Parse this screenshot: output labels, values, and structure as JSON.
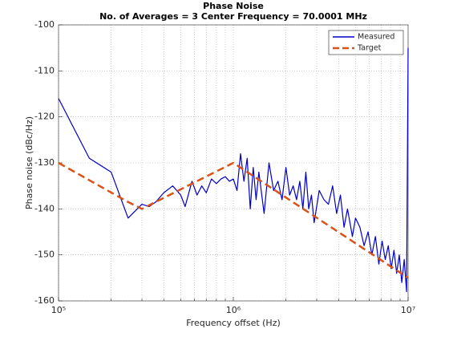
{
  "chart_data": {
    "type": "line",
    "title": "Phase Noise",
    "subtitle": "No. of Averages = 3 Center Frequency = 70.0001 MHz",
    "xlabel": "Frequency offset (Hz)",
    "ylabel": "Phase noise (dBc/Hz)",
    "xscale": "log",
    "xlim": [
      100000,
      10000000
    ],
    "ylim": [
      -160,
      -100
    ],
    "xticks": [
      {
        "value": 100000,
        "label": "10⁵"
      },
      {
        "value": 1000000,
        "label": "10⁶"
      },
      {
        "value": 10000000,
        "label": "10⁷"
      }
    ],
    "xminorticks": [
      200000,
      300000,
      400000,
      500000,
      600000,
      700000,
      800000,
      900000,
      2000000,
      3000000,
      4000000,
      5000000,
      6000000,
      7000000,
      8000000,
      9000000
    ],
    "yticks": [
      -160,
      -150,
      -140,
      -130,
      -120,
      -110,
      -100
    ],
    "grid": true,
    "legend": "top-right",
    "series": [
      {
        "name": "Measured",
        "color": "#0000cc",
        "style": "solid",
        "x": [
          100000,
          150000,
          200000,
          250000,
          300000,
          330000,
          360000,
          400000,
          450000,
          500000,
          530000,
          580000,
          620000,
          660000,
          700000,
          750000,
          800000,
          850000,
          900000,
          950000,
          1000000,
          1050000,
          1100000,
          1150000,
          1200000,
          1250000,
          1300000,
          1350000,
          1400000,
          1500000,
          1600000,
          1700000,
          1800000,
          1900000,
          2000000,
          2100000,
          2200000,
          2300000,
          2400000,
          2500000,
          2600000,
          2700000,
          2800000,
          2900000,
          3100000,
          3300000,
          3500000,
          3700000,
          3900000,
          4100000,
          4300000,
          4500000,
          4800000,
          5000000,
          5300000,
          5600000,
          5900000,
          6200000,
          6500000,
          6800000,
          7100000,
          7400000,
          7700000,
          8000000,
          8300000,
          8600000,
          8900000,
          9200000,
          9500000,
          9800000,
          10000000
        ],
        "values": [
          -116,
          -129,
          -132,
          -142,
          -139,
          -139.5,
          -138.5,
          -136.5,
          -135,
          -137,
          -139.5,
          -134,
          -137,
          -135,
          -136.5,
          -133.5,
          -134.5,
          -133.5,
          -133,
          -134,
          -133.5,
          -136,
          -128,
          -134,
          -129,
          -140,
          -131,
          -138,
          -132,
          -141,
          -130,
          -136,
          -134,
          -138,
          -131,
          -137,
          -135,
          -138,
          -134,
          -140,
          -132,
          -140,
          -137,
          -143,
          -136,
          -138,
          -139,
          -135,
          -141,
          -137,
          -144,
          -140,
          -146,
          -142,
          -144,
          -148,
          -145,
          -150,
          -146,
          -152,
          -147,
          -151,
          -148,
          -153,
          -149,
          -154,
          -150,
          -156,
          -151,
          -158,
          -105
        ]
      },
      {
        "name": "Target",
        "color": "#d95319",
        "style": "dashed",
        "x": [
          100000,
          250000,
          300000,
          1000000,
          10000000
        ],
        "values": [
          -130,
          -138.5,
          -140,
          -130,
          -155
        ]
      }
    ]
  }
}
